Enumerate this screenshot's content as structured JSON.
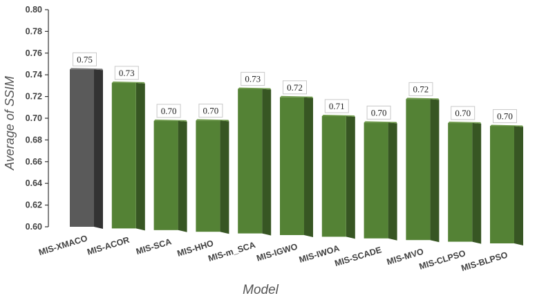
{
  "chart_data": {
    "type": "bar",
    "categories": [
      "MIS-XMACO",
      "MIS-ACOR",
      "MIS-SCA",
      "MIS-HHO",
      "MIS-m_SCA",
      "MIS-IGWO",
      "MIS-IWOA",
      "MIS-SCADE",
      "MIS-MVO",
      "MIS-CLPSO",
      "MIS-BLPSO"
    ],
    "values": [
      0.745,
      0.733,
      0.699,
      0.7,
      0.729,
      0.722,
      0.706,
      0.701,
      0.722,
      0.702,
      0.7
    ],
    "data_labels": [
      "0.75",
      "0.73",
      "0.70",
      "0.70",
      "0.73",
      "0.72",
      "0.71",
      "0.70",
      "0.72",
      "0.70",
      "0.70"
    ],
    "title": "",
    "xlabel": "Model",
    "ylabel": "Average of SSIM",
    "ylim": [
      0.6,
      0.8
    ],
    "yticks": [
      "0.60",
      "0.62",
      "0.64",
      "0.66",
      "0.68",
      "0.70",
      "0.72",
      "0.74",
      "0.76",
      "0.78",
      "0.80"
    ],
    "grid": false,
    "legend": "none",
    "style": "3d-bars",
    "colors": {
      "highlight": "#5a5a5a",
      "highlight_side": "#333333",
      "highlight_top": "#7a7a7a",
      "bar": "#548235",
      "bar_side": "#375623",
      "bar_top": "#6e9a4a",
      "axis": "#333333"
    },
    "highlight_index": 0
  }
}
